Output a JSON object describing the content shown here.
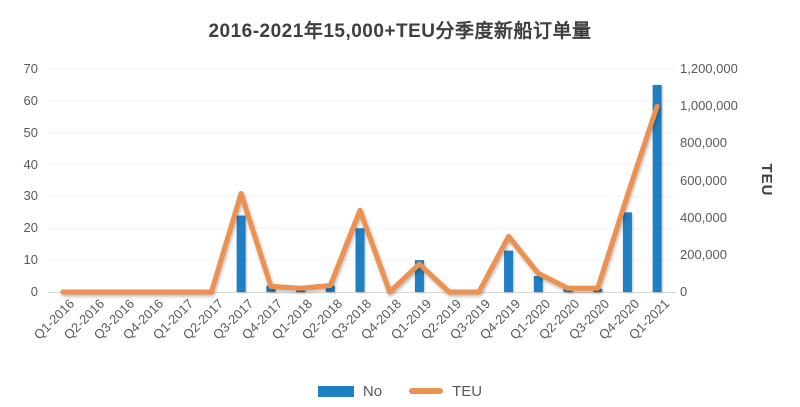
{
  "chart_data": {
    "type": "bar+line combo",
    "title": "2016-2021年15,000+TEU分季度新船订单量",
    "categories": [
      "Q1-2016",
      "Q2-2016",
      "Q3-2016",
      "Q4-2016",
      "Q1-2017",
      "Q2-2017",
      "Q3-2017",
      "Q4-2017",
      "Q1-2018",
      "Q2-2018",
      "Q3-2018",
      "Q4-2018",
      "Q1-2019",
      "Q2-2019",
      "Q3-2019",
      "Q4-2019",
      "Q1-2020",
      "Q2-2020",
      "Q3-2020",
      "Q4-2020",
      "Q1-2021"
    ],
    "series": [
      {
        "name": "No",
        "type": "bar",
        "axis": "left",
        "color": "#1f7fc2",
        "values": [
          0,
          0,
          0,
          0,
          0,
          0,
          24,
          2,
          1,
          2,
          20,
          0,
          10,
          0,
          0,
          13,
          5,
          1,
          1,
          25,
          65
        ]
      },
      {
        "name": "TEU",
        "type": "line",
        "axis": "right",
        "color": "#ec9150",
        "values": [
          0,
          0,
          0,
          0,
          0,
          0,
          530000,
          30000,
          20000,
          35000,
          440000,
          0,
          150000,
          0,
          0,
          300000,
          100000,
          20000,
          20000,
          520000,
          1000000
        ]
      }
    ],
    "left_axis": {
      "min": 0,
      "max": 70,
      "step": 10,
      "tick_labels": [
        "0",
        "10",
        "20",
        "30",
        "40",
        "50",
        "60",
        "70"
      ]
    },
    "right_axis": {
      "min": 0,
      "max": 1200000,
      "step": 200000,
      "title": "TEU",
      "tick_labels": [
        "0",
        "200,000",
        "400,000",
        "600,000",
        "800,000",
        "1,000,000",
        "1,200,000"
      ]
    },
    "legend_position": "bottom-center",
    "grid": "faint horizontal gridlines",
    "colors": {
      "grid": "#f2f2f2",
      "axis_line": "#d9d9d9",
      "tick_text": "#595959",
      "title_text": "#3f3f3f"
    }
  }
}
